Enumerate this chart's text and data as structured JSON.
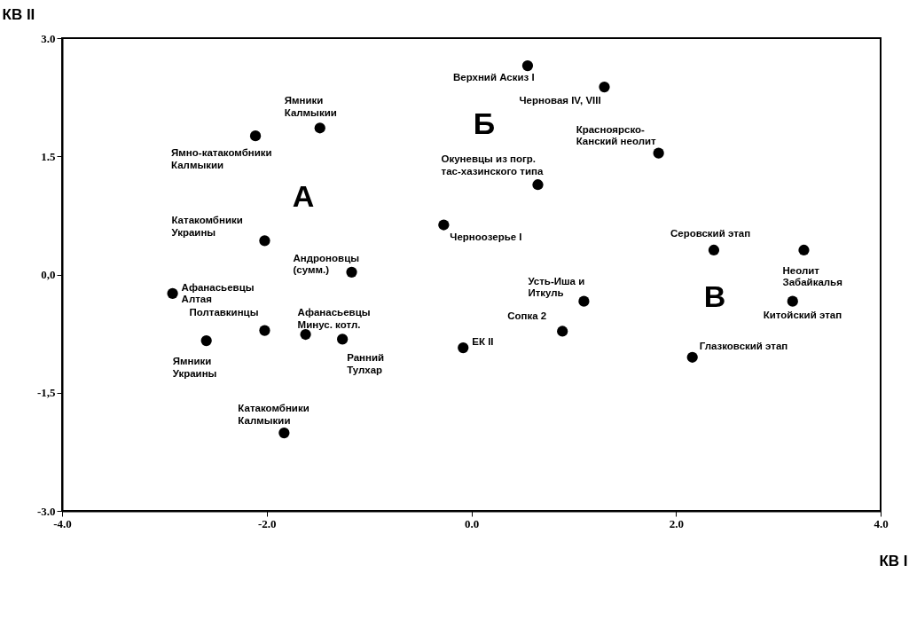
{
  "chart_data": {
    "type": "scatter",
    "xlabel": "КВ I",
    "ylabel": "КВ II",
    "marker": "circle",
    "grid": false,
    "xlim": [
      -4.0,
      4.0
    ],
    "xticks": [
      {
        "value": -4,
        "label": "-4.0"
      },
      {
        "value": -2,
        "label": "-2.0"
      },
      {
        "value": 0,
        "label": "0.0"
      },
      {
        "value": 2,
        "label": "2.0"
      },
      {
        "value": 4,
        "label": "4.0"
      }
    ],
    "ylim": [
      -3.0,
      3.0
    ],
    "yticks": [
      {
        "value": 3,
        "label": "3.0"
      },
      1.5,
      {
        "value": 0,
        "label": "0,0"
      },
      {
        "value": -1.5,
        "label": "-1,5"
      },
      {
        "value": -3,
        "label": "-3.0"
      }
    ],
    "series": [
      {
        "color": "#000000",
        "x": [
          -2.11,
          -1.48,
          -2.02,
          -1.17,
          -2.92,
          -2.02,
          -1.62,
          -1.26,
          -2.59,
          -1.83,
          0.55,
          1.3,
          1.83,
          0.65,
          -0.27,
          1.1,
          0.89,
          -0.08,
          2.37,
          3.25,
          3.14,
          2.16
        ],
        "values": [
          1.76,
          1.86,
          0.43,
          0.03,
          -0.24,
          -0.71,
          -0.76,
          -0.82,
          -0.84,
          -2.01,
          2.65,
          2.38,
          1.54,
          1.14,
          0.63,
          -0.34,
          -0.72,
          -0.93,
          0.31,
          0.31,
          -0.34,
          -1.05
        ]
      }
    ],
    "annotations": [
      {
        "text": "Ямно-катакомбники\nКалмыкии",
        "x": -2.11,
        "y": 1.76
      },
      {
        "text": "Ямники\nКалмыкии",
        "x": -1.48,
        "y": 1.86
      },
      {
        "text": "Катакомбники\nУкраины",
        "x": -2.02,
        "y": 0.43
      },
      {
        "text": "Андроновцы\n(сумм.)",
        "x": -1.17,
        "y": 0.03
      },
      {
        "text": "Афанасьевцы\nАлтая",
        "x": -2.92,
        "y": -0.24
      },
      {
        "text": "Полтавкинцы",
        "x": -2.02,
        "y": -0.71
      },
      {
        "text": "Афанасьевцы\nМинус. котл.",
        "x": -1.62,
        "y": -0.76
      },
      {
        "text": "Ранний\nТулхар",
        "x": -1.26,
        "y": -0.82
      },
      {
        "text": "Ямники\nУкраины",
        "x": -2.59,
        "y": -0.84
      },
      {
        "text": "Катакомбники\nКалмыкии",
        "x": -1.83,
        "y": -2.01
      },
      {
        "text": "Верхний Аскиз I",
        "x": 0.55,
        "y": 2.65
      },
      {
        "text": "Черновая IV, VIII",
        "x": 1.3,
        "y": 2.38
      },
      {
        "text": "Красноярско-\nКанский неолит",
        "x": 1.83,
        "y": 1.54
      },
      {
        "text": "Окуневцы из погр.\nтас-хазинского типа",
        "x": 0.65,
        "y": 1.14
      },
      {
        "text": "Черноозерье I",
        "x": -0.27,
        "y": 0.63
      },
      {
        "text": "Усть-Иша и\nИткуль",
        "x": 1.1,
        "y": -0.34
      },
      {
        "text": "Сопка 2",
        "x": 0.89,
        "y": -0.72
      },
      {
        "text": "ЕК II",
        "x": -0.08,
        "y": -0.93
      },
      {
        "text": "Серовский этап",
        "x": 2.37,
        "y": 0.31
      },
      {
        "text": "Неолит\nЗабайкалья",
        "x": 3.25,
        "y": 0.31
      },
      {
        "text": "Китойский этап",
        "x": 3.14,
        "y": -0.34
      },
      {
        "text": "Глазковский этап",
        "x": 2.16,
        "y": -1.05
      },
      "А",
      "Б",
      "В"
    ]
  }
}
